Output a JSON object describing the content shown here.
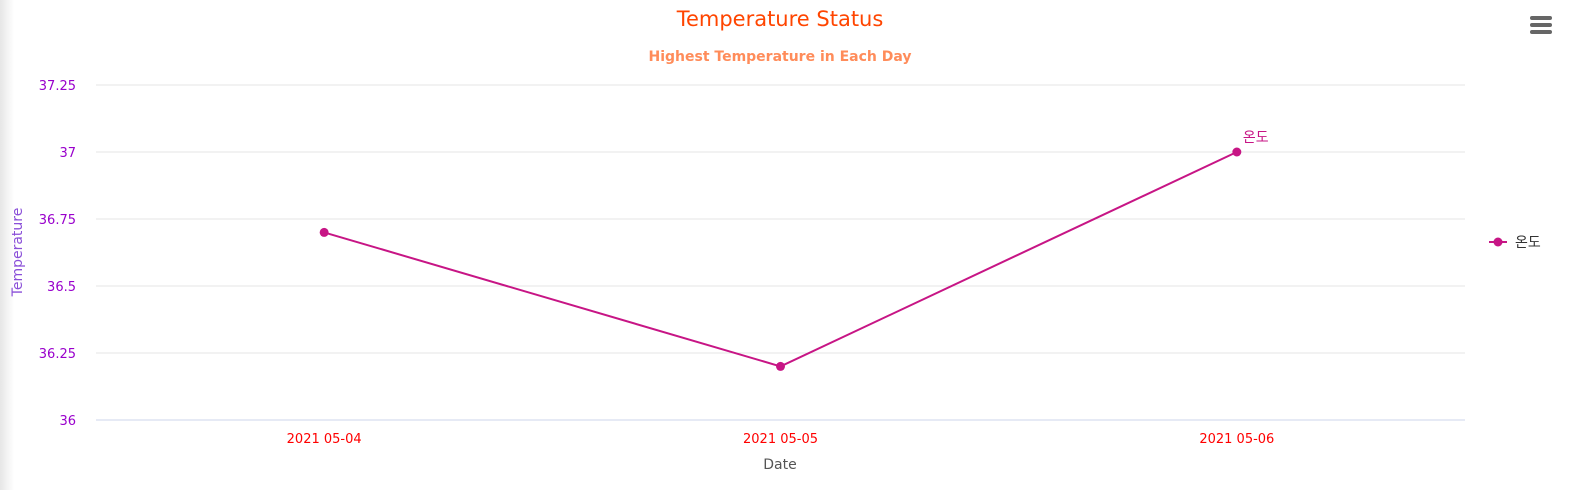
{
  "colors": {
    "title": "#ff4500",
    "subtitle": "#ff8c5a",
    "ytick": "#9900cc",
    "ylabel": "#8a4fd8",
    "xtick": "#ff0000",
    "xlabel": "#555555",
    "series": "#c71585",
    "grid": "#e6e6e6",
    "axis": "#ccd6eb"
  },
  "menu": {
    "icon": "hamburger-menu-icon"
  },
  "chart_data": {
    "type": "line",
    "title": "Temperature Status",
    "subtitle": "Highest Temperature in Each Day",
    "xlabel": "Date",
    "ylabel": "Temperature",
    "categories": [
      "2021 05-04",
      "2021 05-05",
      "2021 05-06"
    ],
    "series": [
      {
        "name": "온도",
        "values": [
          36.7,
          36.2,
          37.0
        ],
        "end_label": "온도"
      }
    ],
    "ylim": [
      36,
      37.25
    ],
    "yticks": [
      "36",
      "36.25",
      "36.5",
      "36.75",
      "37",
      "37.25"
    ],
    "grid": true,
    "legend": "right"
  }
}
